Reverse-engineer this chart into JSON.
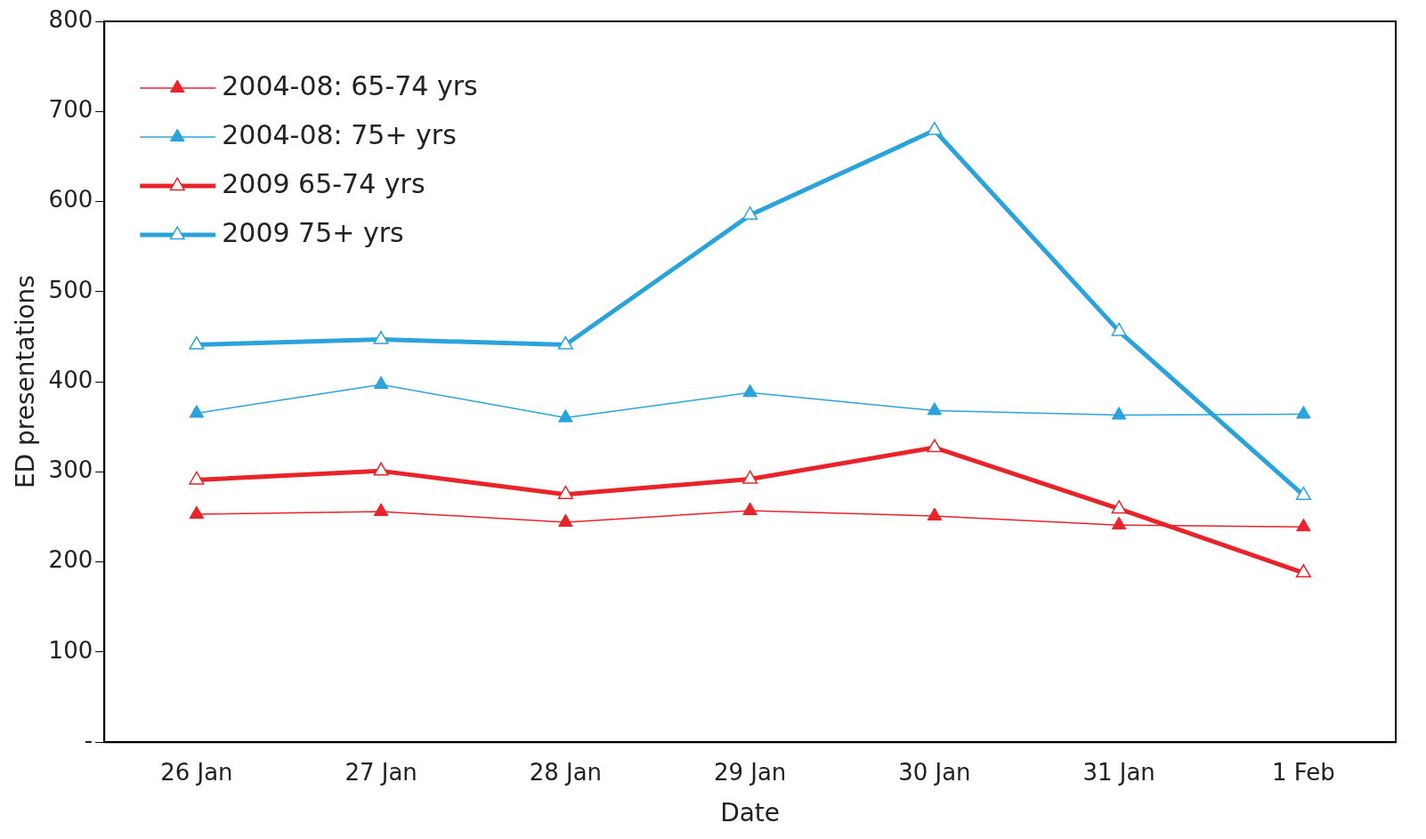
{
  "chart_data": {
    "type": "line",
    "xlabel": "Date",
    "ylabel": "ED presentations",
    "categories": [
      "26 Jan",
      "27 Jan",
      "28 Jan",
      "29 Jan",
      "30 Jan",
      "31 Jan",
      "1 Feb"
    ],
    "series": [
      {
        "name": "2004-08: 65-74 yrs",
        "color": "#e8232a",
        "values": [
          253,
          256,
          244,
          257,
          251,
          241,
          239
        ]
      },
      {
        "name": "2004-08: 75+ yrs",
        "color": "#2aa3dc",
        "values": [
          365,
          397,
          360,
          388,
          368,
          363,
          364
        ]
      },
      {
        "name": "2009 65-74 yrs",
        "color": "#e8232a",
        "values": [
          291,
          301,
          275,
          292,
          327,
          259,
          188
        ]
      },
      {
        "name": "2009 75+ yrs",
        "color": "#2aa3dc",
        "values": [
          441,
          447,
          441,
          585,
          679,
          456,
          274
        ]
      }
    ],
    "ylim": [
      0,
      800
    ],
    "yticks": [
      {
        "value": 0,
        "label": "-"
      },
      100,
      200,
      300,
      400,
      500,
      600,
      700,
      800
    ],
    "grid": false,
    "legend": "top left",
    "marker": "triangle",
    "line_style": "solid"
  }
}
